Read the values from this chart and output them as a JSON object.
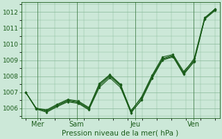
{
  "background_color": "#cce8d8",
  "grid_color": "#88b898",
  "line_color": "#1a5c1a",
  "marker_color": "#1a5c1a",
  "xlabel": "Pression niveau de la mer( hPa )",
  "ylim": [
    1005.4,
    1012.6
  ],
  "xlim": [
    -0.3,
    13.3
  ],
  "yticks": [
    1006,
    1007,
    1008,
    1009,
    1010,
    1011,
    1012
  ],
  "xtick_positions": [
    0.8,
    3.5,
    7.5,
    11.5
  ],
  "xtick_labels": [
    "Mer",
    "Sam",
    "Jeu",
    "Ven"
  ],
  "vline_positions": [
    0.8,
    3.5,
    7.5,
    11.5
  ],
  "series": [
    [
      1007.0,
      1006.0,
      1005.85,
      1006.2,
      1006.5,
      1006.4,
      1006.0,
      1007.55,
      1008.1,
      1007.5,
      1005.8,
      1006.7,
      1008.05,
      1009.2,
      1009.35,
      1008.3,
      1009.0,
      1011.6,
      1012.2
    ],
    [
      1007.0,
      1005.95,
      1005.75,
      1006.1,
      1006.4,
      1006.3,
      1005.9,
      1007.3,
      1007.9,
      1007.3,
      1005.75,
      1006.5,
      1007.85,
      1009.0,
      1009.2,
      1008.1,
      1008.9,
      1011.55,
      1012.1
    ],
    [
      1007.0,
      1006.0,
      1005.8,
      1006.15,
      1006.45,
      1006.35,
      1005.95,
      1007.4,
      1008.0,
      1007.4,
      1005.7,
      1006.55,
      1007.9,
      1009.05,
      1009.25,
      1008.15,
      1008.95,
      1011.6,
      1012.15
    ],
    [
      1007.0,
      1006.0,
      1005.9,
      1006.25,
      1006.55,
      1006.45,
      1006.05,
      1007.5,
      1008.05,
      1007.45,
      1005.85,
      1006.65,
      1008.0,
      1009.1,
      1009.3,
      1008.2,
      1009.1,
      1011.65,
      1012.2
    ]
  ],
  "ytick_fontsize": 6.5,
  "xtick_fontsize": 7.0,
  "xlabel_fontsize": 7.5
}
